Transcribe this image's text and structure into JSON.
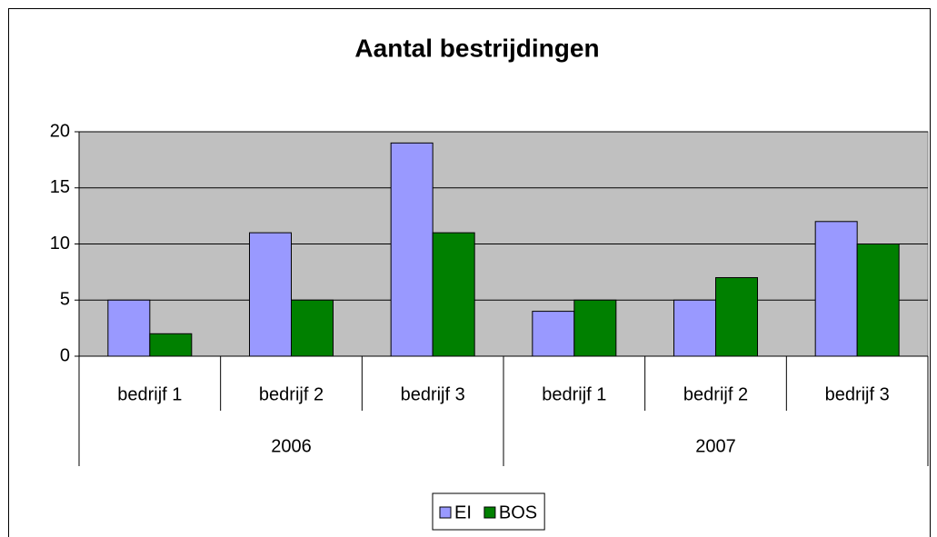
{
  "chart_data": {
    "type": "bar",
    "title": "Aantal bestrijdingen",
    "groups": [
      {
        "name": "2006",
        "categories": [
          "bedrijf 1",
          "bedrijf 2",
          "bedrijf 3"
        ]
      },
      {
        "name": "2007",
        "categories": [
          "bedrijf 1",
          "bedrijf 2",
          "bedrijf 3"
        ]
      }
    ],
    "series": [
      {
        "name": "EI",
        "color": "#9999ff",
        "values": [
          5,
          11,
          19,
          4,
          5,
          12
        ]
      },
      {
        "name": "BOS",
        "color": "#008000",
        "values": [
          2,
          5,
          11,
          5,
          7,
          10
        ]
      }
    ],
    "ylim": [
      0,
      20
    ],
    "yticks": [
      0,
      5,
      10,
      15,
      20
    ],
    "grid": true,
    "legend": "bottom"
  }
}
